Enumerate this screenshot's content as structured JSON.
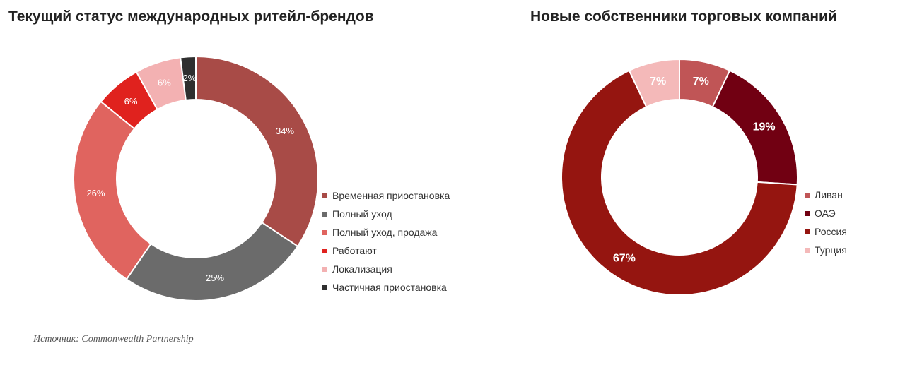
{
  "chart_data": [
    {
      "type": "pie",
      "title": "Текущий статус международных ритейл-брендов",
      "series": [
        {
          "name": "Временная приостановка",
          "value": 34,
          "label": "34%",
          "color": "#a84b47"
        },
        {
          "name": "Полный уход",
          "value": 25,
          "label": "25%",
          "color": "#6b6b6b"
        },
        {
          "name": "Полный уход, продажа",
          "value": 26,
          "label": "26%",
          "color": "#e0645f"
        },
        {
          "name": "Работают",
          "value": 6,
          "label": "6%",
          "color": "#e0221e"
        },
        {
          "name": "Локализация",
          "value": 6,
          "label": "6%",
          "color": "#f3b1b2"
        },
        {
          "name": "Частичная приостановка",
          "value": 2,
          "label": "2%",
          "color": "#2f2f2f"
        }
      ]
    },
    {
      "type": "pie",
      "title": "Новые собственники торговых компаний",
      "series": [
        {
          "name": "Ливан",
          "value": 7,
          "label": "7%",
          "color": "#c05556"
        },
        {
          "name": "ОАЭ",
          "value": 19,
          "label": "19%",
          "color": "#710012"
        },
        {
          "name": "Россия",
          "value": 67,
          "label": "67%",
          "color": "#951510"
        },
        {
          "name": "Турция",
          "value": 7,
          "label": "7%",
          "color": "#f4b9b9"
        }
      ]
    }
  ],
  "source": "Источник: Commonwealth Partnership"
}
